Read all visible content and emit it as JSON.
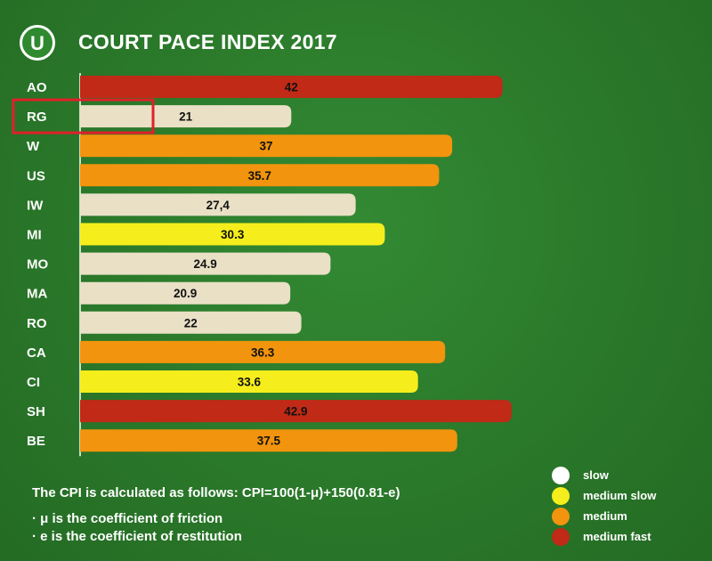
{
  "header": {
    "logo_letter": "U",
    "title": "COURT PACE INDEX 2017"
  },
  "chart_data": {
    "type": "bar",
    "orientation": "horizontal",
    "title": "COURT PACE INDEX 2017",
    "categories": [
      "AO",
      "RG",
      "W",
      "US",
      "IW",
      "MI",
      "MO",
      "MA",
      "RO",
      "CA",
      "CI",
      "SH",
      "BE"
    ],
    "values": [
      42,
      21,
      37,
      35.7,
      27.4,
      30.3,
      24.9,
      20.9,
      22,
      36.3,
      33.6,
      42.9,
      37.5
    ],
    "data_labels": [
      "42",
      "21",
      "37",
      "35.7",
      "27,4",
      "30.3",
      "24.9",
      "20.9",
      "22",
      "36.3",
      "33.6",
      "42.9",
      "37.5"
    ],
    "categories_class": [
      "medium fast",
      "slow",
      "medium",
      "medium",
      "slow",
      "medium slow",
      "slow",
      "slow",
      "slow",
      "medium",
      "medium slow",
      "medium fast",
      "medium"
    ],
    "highlighted_category": "RG",
    "xlim": [
      0,
      45
    ],
    "grid": false,
    "legend_position": "bottom-right"
  },
  "legend": [
    {
      "label": "slow",
      "color": "#ffffff"
    },
    {
      "label": "medium slow",
      "color": "#f5ee1c"
    },
    {
      "label": "medium",
      "color": "#f2940d"
    },
    {
      "label": "medium fast",
      "color": "#c02a16"
    }
  ],
  "bar_colors": {
    "slow": "#e9e0c6",
    "medium slow": "#f5ee1c",
    "medium": "#f2940d",
    "medium fast": "#c02a16"
  },
  "highlight_color": "#e0202a",
  "footer": {
    "formula": "The CPI is calculated as follows: CPI=100(1-μ)+150(0.81-e)",
    "note1": "· μ is the coefficient of friction",
    "note2": "· e is the coefficient of restitution"
  }
}
